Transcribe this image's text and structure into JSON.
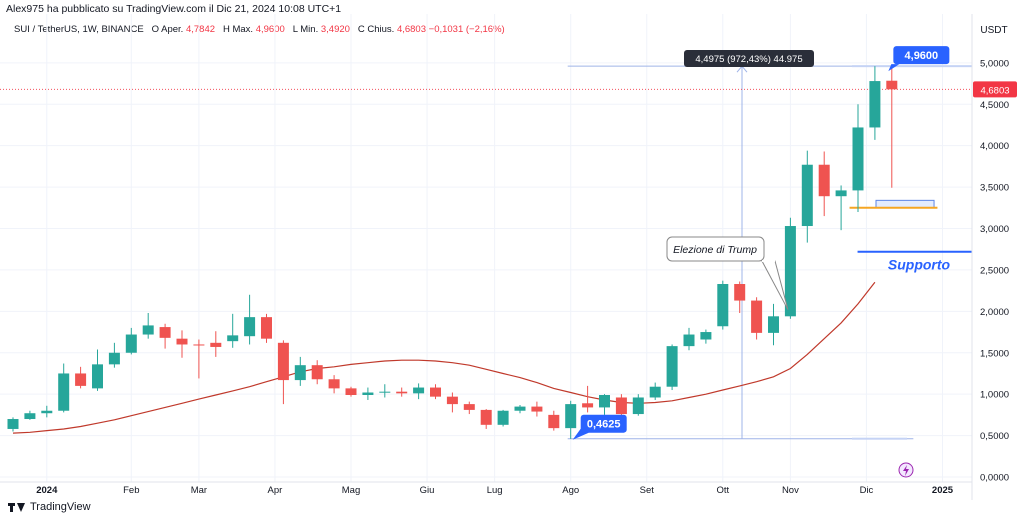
{
  "header": {
    "publisher": "Alex975 ha pubblicato su TradingView.com il Dic 21, 2024 10:08 UTC+1",
    "symbol": "SUI / TetherUS, 1W, BINANCE",
    "open_label": "O",
    "open_text": "Aper.",
    "open_value": "4,7842",
    "high_label": "H",
    "high_text": "Max.",
    "high_value": "4,9600",
    "low_label": "L",
    "low_text": "Min.",
    "low_value": "3,4920",
    "close_label": "C",
    "close_text": "Chius.",
    "close_value": "4,6803",
    "change_value": "−0,1031 (−2,16%)"
  },
  "brand": {
    "name": "TradingView"
  },
  "colors": {
    "up": "#26a69a",
    "down": "#ef5350",
    "ma": "#c0392b",
    "label_blue": "#2962ff",
    "support": "#2962ff",
    "orange": "#f5a623",
    "price_tag": "#f23645",
    "grid": "#f0f3fa"
  },
  "chart_data": {
    "type": "candlestick",
    "currency": "USDT",
    "ylim": [
      0,
      5.3
    ],
    "y_ticks": [
      "0,0000",
      "0,5000",
      "1,0000",
      "1,5000",
      "2,0000",
      "2,5000",
      "3,0000",
      "3,5000",
      "4,0000",
      "4,5000",
      "5,0000"
    ],
    "y_tick_values": [
      0,
      0.5,
      1,
      1.5,
      2,
      2.5,
      3,
      3.5,
      4,
      4.5,
      5
    ],
    "x_ticks": [
      {
        "label": "2024",
        "index": 2
      },
      {
        "label": "Feb",
        "index": 7
      },
      {
        "label": "Mar",
        "index": 11
      },
      {
        "label": "Apr",
        "index": 15.5
      },
      {
        "label": "Mag",
        "index": 20
      },
      {
        "label": "Giu",
        "index": 24.5
      },
      {
        "label": "Lug",
        "index": 28.5
      },
      {
        "label": "Ago",
        "index": 33
      },
      {
        "label": "Set",
        "index": 37.5
      },
      {
        "label": "Ott",
        "index": 42
      },
      {
        "label": "Nov",
        "index": 46
      },
      {
        "label": "Dic",
        "index": 50.5
      },
      {
        "label": "2025",
        "index": 55
      }
    ],
    "candles": [
      {
        "o": 0.58,
        "h": 0.72,
        "l": 0.55,
        "c": 0.7
      },
      {
        "o": 0.7,
        "h": 0.8,
        "l": 0.69,
        "c": 0.77
      },
      {
        "o": 0.77,
        "h": 0.86,
        "l": 0.72,
        "c": 0.8
      },
      {
        "o": 0.8,
        "h": 1.37,
        "l": 0.78,
        "c": 1.25
      },
      {
        "o": 1.25,
        "h": 1.33,
        "l": 1.07,
        "c": 1.1
      },
      {
        "o": 1.07,
        "h": 1.54,
        "l": 1.04,
        "c": 1.36
      },
      {
        "o": 1.36,
        "h": 1.62,
        "l": 1.32,
        "c": 1.5
      },
      {
        "o": 1.5,
        "h": 1.8,
        "l": 1.48,
        "c": 1.72
      },
      {
        "o": 1.72,
        "h": 1.98,
        "l": 1.67,
        "c": 1.83
      },
      {
        "o": 1.81,
        "h": 1.85,
        "l": 1.55,
        "c": 1.68
      },
      {
        "o": 1.67,
        "h": 1.77,
        "l": 1.44,
        "c": 1.6
      },
      {
        "o": 1.6,
        "h": 1.66,
        "l": 1.19,
        "c": 1.59
      },
      {
        "o": 1.62,
        "h": 1.76,
        "l": 1.45,
        "c": 1.57
      },
      {
        "o": 1.64,
        "h": 1.97,
        "l": 1.56,
        "c": 1.71
      },
      {
        "o": 1.7,
        "h": 2.2,
        "l": 1.6,
        "c": 1.93
      },
      {
        "o": 1.93,
        "h": 1.97,
        "l": 1.62,
        "c": 1.67
      },
      {
        "o": 1.62,
        "h": 1.65,
        "l": 0.88,
        "c": 1.17
      },
      {
        "o": 1.17,
        "h": 1.45,
        "l": 1.1,
        "c": 1.35
      },
      {
        "o": 1.35,
        "h": 1.41,
        "l": 1.12,
        "c": 1.18
      },
      {
        "o": 1.18,
        "h": 1.23,
        "l": 1.01,
        "c": 1.07
      },
      {
        "o": 1.07,
        "h": 1.09,
        "l": 0.97,
        "c": 0.99
      },
      {
        "o": 0.99,
        "h": 1.08,
        "l": 0.93,
        "c": 1.02
      },
      {
        "o": 1.02,
        "h": 1.12,
        "l": 0.96,
        "c": 1.03
      },
      {
        "o": 1.03,
        "h": 1.08,
        "l": 0.97,
        "c": 1.01
      },
      {
        "o": 1.01,
        "h": 1.13,
        "l": 0.94,
        "c": 1.08
      },
      {
        "o": 1.08,
        "h": 1.12,
        "l": 0.94,
        "c": 0.97
      },
      {
        "o": 0.97,
        "h": 1.02,
        "l": 0.78,
        "c": 0.88
      },
      {
        "o": 0.88,
        "h": 0.91,
        "l": 0.76,
        "c": 0.81
      },
      {
        "o": 0.81,
        "h": 0.82,
        "l": 0.58,
        "c": 0.63
      },
      {
        "o": 0.63,
        "h": 0.81,
        "l": 0.61,
        "c": 0.8
      },
      {
        "o": 0.8,
        "h": 0.87,
        "l": 0.77,
        "c": 0.85
      },
      {
        "o": 0.85,
        "h": 0.91,
        "l": 0.73,
        "c": 0.79
      },
      {
        "o": 0.75,
        "h": 0.8,
        "l": 0.56,
        "c": 0.59
      },
      {
        "o": 0.59,
        "h": 0.92,
        "l": 0.46,
        "c": 0.88
      },
      {
        "o": 0.89,
        "h": 1.1,
        "l": 0.78,
        "c": 0.84
      },
      {
        "o": 0.84,
        "h": 1.0,
        "l": 0.75,
        "c": 0.99
      },
      {
        "o": 0.96,
        "h": 1.0,
        "l": 0.73,
        "c": 0.76
      },
      {
        "o": 0.76,
        "h": 1.0,
        "l": 0.74,
        "c": 0.96
      },
      {
        "o": 0.96,
        "h": 1.14,
        "l": 0.93,
        "c": 1.09
      },
      {
        "o": 1.09,
        "h": 1.6,
        "l": 1.05,
        "c": 1.58
      },
      {
        "o": 1.58,
        "h": 1.8,
        "l": 1.53,
        "c": 1.72
      },
      {
        "o": 1.66,
        "h": 1.78,
        "l": 1.61,
        "c": 1.75
      },
      {
        "o": 1.82,
        "h": 2.37,
        "l": 1.78,
        "c": 2.33
      },
      {
        "o": 2.33,
        "h": 2.36,
        "l": 1.98,
        "c": 2.13
      },
      {
        "o": 2.13,
        "h": 2.17,
        "l": 1.66,
        "c": 1.74
      },
      {
        "o": 1.74,
        "h": 2.09,
        "l": 1.59,
        "c": 1.94
      },
      {
        "o": 1.94,
        "h": 3.13,
        "l": 1.91,
        "c": 3.03
      },
      {
        "o": 3.03,
        "h": 3.94,
        "l": 2.83,
        "c": 3.77
      },
      {
        "o": 3.77,
        "h": 3.93,
        "l": 3.15,
        "c": 3.39
      },
      {
        "o": 3.39,
        "h": 3.52,
        "l": 2.98,
        "c": 3.46
      },
      {
        "o": 3.46,
        "h": 4.5,
        "l": 3.2,
        "c": 4.22
      },
      {
        "o": 4.22,
        "h": 4.96,
        "l": 4.07,
        "c": 4.78
      },
      {
        "o": 4.7842,
        "h": 4.96,
        "l": 3.492,
        "c": 4.6803
      }
    ],
    "moving_average": [
      0.53,
      0.54,
      0.56,
      0.58,
      0.61,
      0.65,
      0.69,
      0.74,
      0.79,
      0.84,
      0.89,
      0.94,
      0.99,
      1.04,
      1.09,
      1.15,
      1.21,
      1.27,
      1.31,
      1.33,
      1.36,
      1.38,
      1.4,
      1.41,
      1.41,
      1.4,
      1.38,
      1.35,
      1.3,
      1.25,
      1.2,
      1.14,
      1.07,
      1.02,
      0.97,
      0.93,
      0.9,
      0.89,
      0.9,
      0.92,
      0.96,
      1.0,
      1.05,
      1.1,
      1.15,
      1.21,
      1.31,
      1.48,
      1.67,
      1.86,
      2.09,
      2.35
    ],
    "last_price": {
      "value": 4.6803,
      "label": "4,6803"
    },
    "annotations": {
      "high_label": {
        "text": "4,9600",
        "value": 4.96,
        "index": 51.5
      },
      "low_label": {
        "text": "0,4625",
        "value": 0.4625,
        "index": 33
      },
      "measure": {
        "text": "4,4975 (972,43%) 44.975",
        "from": 0.4625,
        "to": 4.96,
        "index_from": 33,
        "index_to": 51.5
      },
      "callout": {
        "text": "Elezione di Trump",
        "target_index": 45.5
      },
      "support": {
        "text": "Supporto",
        "value": 2.72,
        "index_from": 49.5,
        "index_to": 57
      },
      "orange_line": {
        "value": 3.25,
        "index_from": 49.5,
        "index_to": 54.7
      },
      "zone_box": {
        "from": 3.25,
        "to": 3.34,
        "index_from": 50,
        "index_to": 54.5
      }
    }
  }
}
